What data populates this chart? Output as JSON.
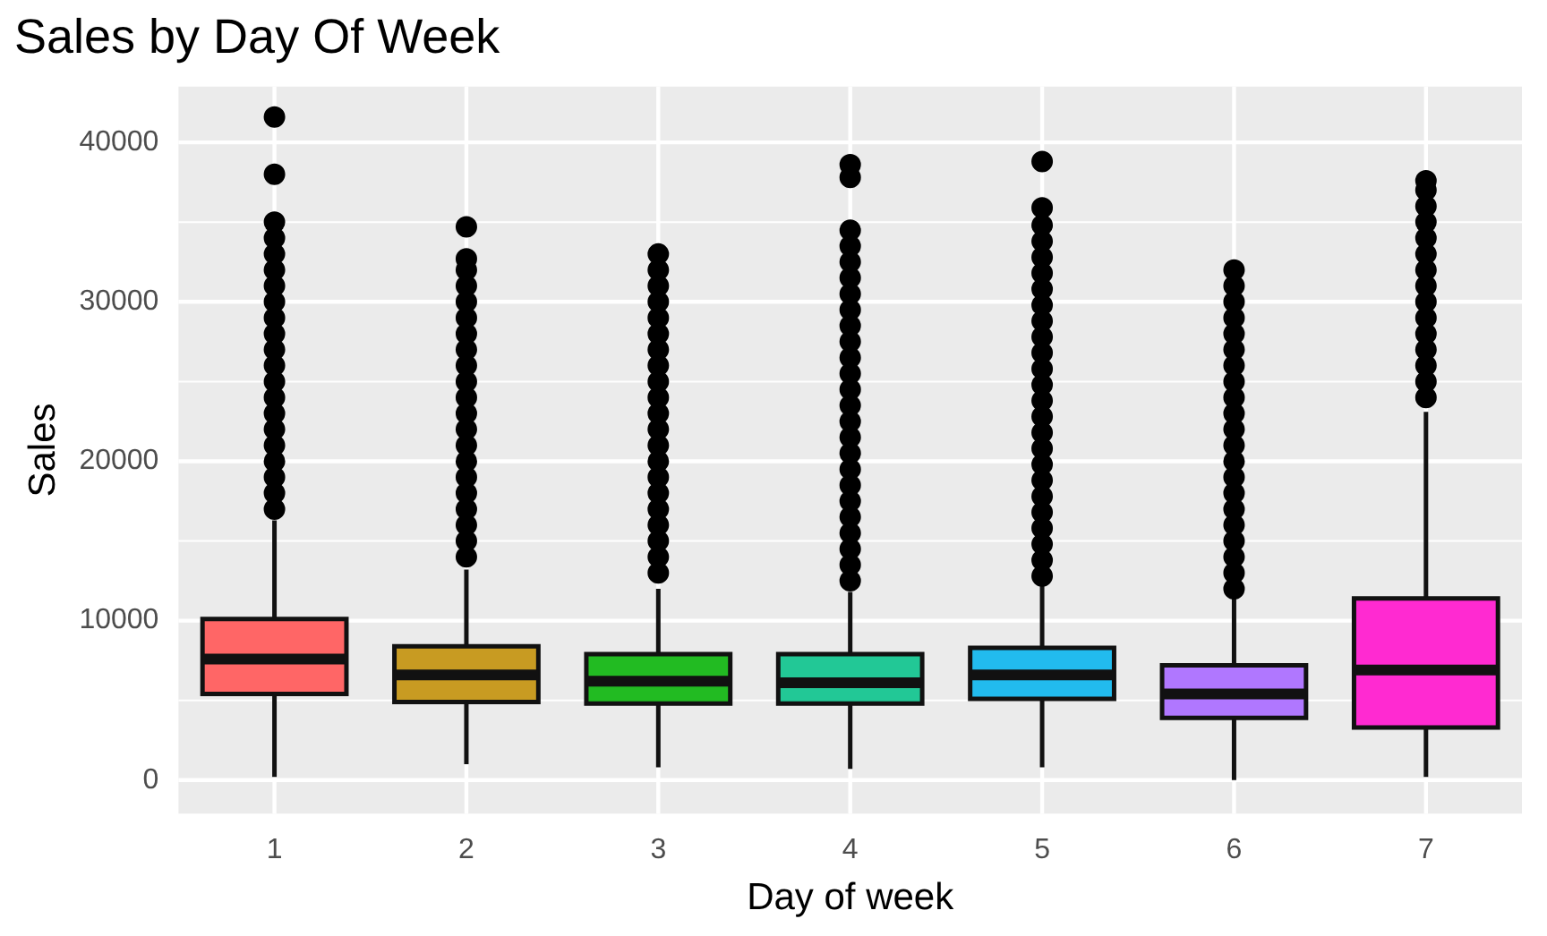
{
  "chart_data": {
    "type": "box",
    "title": "Sales by Day Of Week",
    "xlabel": "Day of week",
    "ylabel": "Sales",
    "categories": [
      "1",
      "2",
      "3",
      "4",
      "5",
      "6",
      "7"
    ],
    "colors": [
      "#ff6666",
      "#c89b22",
      "#22bb22",
      "#22c896",
      "#22bbee",
      "#b077ff",
      "#ff2ad1"
    ],
    "boxes": [
      {
        "low": 200,
        "q1": 5400,
        "median": 7600,
        "q3": 10100,
        "high": 16300,
        "outliers": [
          17000,
          18000,
          19000,
          20000,
          21000,
          22000,
          23000,
          24000,
          25000,
          26000,
          27000,
          28000,
          29000,
          30000,
          31000,
          32000,
          33000,
          34000,
          35000,
          38000,
          41600
        ]
      },
      {
        "low": 1000,
        "q1": 4900,
        "median": 6600,
        "q3": 8400,
        "high": 13200,
        "outliers": [
          14000,
          15000,
          16000,
          17000,
          18000,
          19000,
          20000,
          21000,
          22000,
          23000,
          24000,
          25000,
          26000,
          27000,
          28000,
          29000,
          30000,
          31000,
          32000,
          32700,
          34700
        ]
      },
      {
        "low": 800,
        "q1": 4800,
        "median": 6200,
        "q3": 7900,
        "high": 12000,
        "outliers": [
          13000,
          14000,
          15000,
          16000,
          17000,
          18000,
          19000,
          20000,
          21000,
          22000,
          23000,
          24000,
          25000,
          26000,
          27000,
          28000,
          29000,
          30000,
          31000,
          32000,
          33000
        ]
      },
      {
        "low": 700,
        "q1": 4800,
        "median": 6100,
        "q3": 7900,
        "high": 11800,
        "outliers": [
          12500,
          13500,
          14500,
          15500,
          16500,
          17500,
          18500,
          19500,
          20500,
          21500,
          22500,
          23500,
          24500,
          25500,
          26500,
          27500,
          28500,
          29500,
          30500,
          31500,
          32500,
          33500,
          34500,
          37800,
          38600
        ]
      },
      {
        "low": 800,
        "q1": 5100,
        "median": 6600,
        "q3": 8300,
        "high": 12200,
        "outliers": [
          12800,
          13800,
          14800,
          15800,
          16800,
          17800,
          18800,
          19800,
          20800,
          21800,
          22800,
          23800,
          24800,
          25800,
          26800,
          27800,
          28800,
          29800,
          30800,
          31800,
          32800,
          33800,
          34800,
          35900,
          38800
        ]
      },
      {
        "low": 0,
        "q1": 3900,
        "median": 5400,
        "q3": 7200,
        "high": 11400,
        "outliers": [
          12000,
          13000,
          14000,
          15000,
          16000,
          17000,
          18000,
          19000,
          20000,
          21000,
          22000,
          23000,
          24000,
          25000,
          26000,
          27000,
          28000,
          29000,
          30000,
          31000,
          32000
        ]
      },
      {
        "low": 200,
        "q1": 3300,
        "median": 6900,
        "q3": 11400,
        "high": 23100,
        "outliers": [
          24000,
          25000,
          26000,
          27000,
          28000,
          29000,
          30000,
          31000,
          32000,
          33000,
          34000,
          35000,
          36000,
          37000,
          37600
        ]
      }
    ],
    "ylim": [
      -2100,
      43500
    ],
    "yticks": [
      0,
      10000,
      20000,
      30000,
      40000
    ],
    "grid": true,
    "marker": "circle"
  }
}
